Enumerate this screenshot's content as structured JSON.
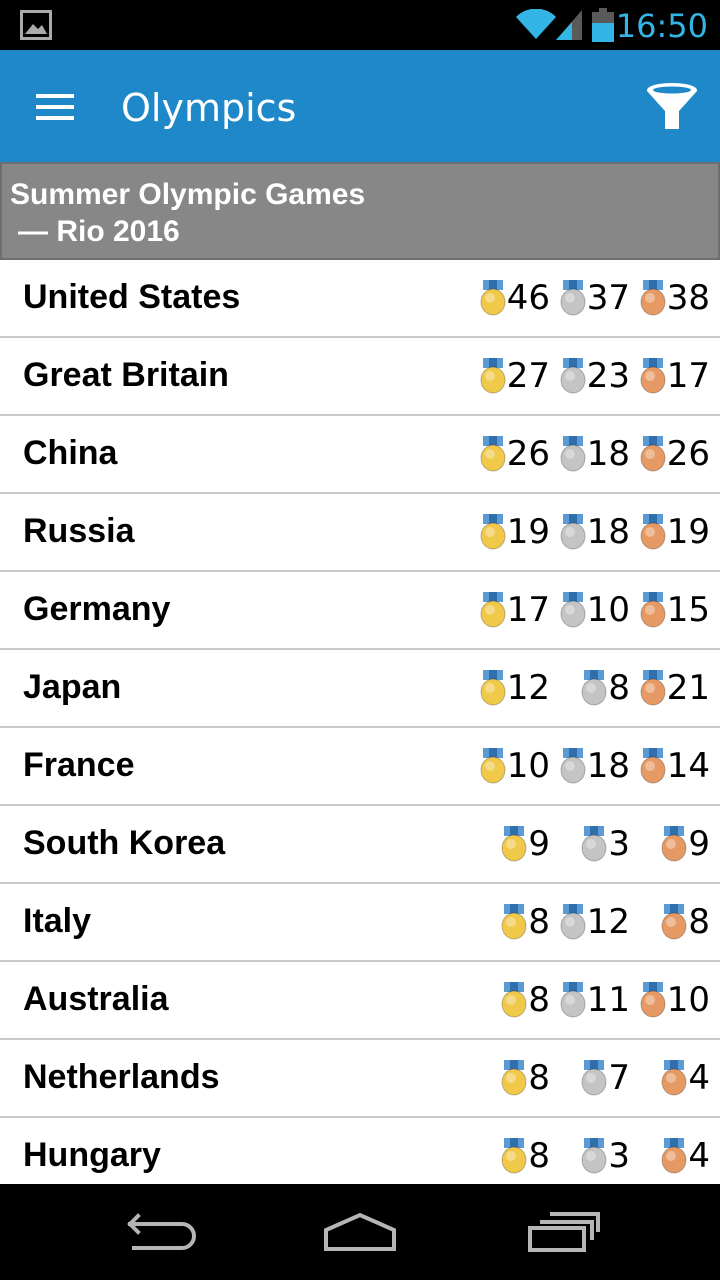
{
  "status_bar": {
    "time": "16:50",
    "icons": [
      "gallery-icon",
      "wifi-icon",
      "signal-icon",
      "battery-icon"
    ],
    "accent_color": "#33b5e5"
  },
  "app_bar": {
    "title": "Olympics",
    "menu_icon": "hamburger-menu-icon",
    "filter_icon": "filter-funnel-icon",
    "background": "#1e88c9"
  },
  "section": {
    "title_line1": "Summer Olympic Games",
    "title_line2": "— Rio 2016"
  },
  "medal_colors": {
    "gold": "#f0c84a",
    "silver": "#c4c4c4",
    "bronze": "#e69a63",
    "ribbon": "#5b9bd5"
  },
  "countries": [
    {
      "name": "United States",
      "gold": "46",
      "silver": "37",
      "bronze": "38"
    },
    {
      "name": "Great Britain",
      "gold": "27",
      "silver": "23",
      "bronze": "17"
    },
    {
      "name": "China",
      "gold": "26",
      "silver": "18",
      "bronze": "26"
    },
    {
      "name": "Russia",
      "gold": "19",
      "silver": "18",
      "bronze": "19"
    },
    {
      "name": "Germany",
      "gold": "17",
      "silver": "10",
      "bronze": "15"
    },
    {
      "name": "Japan",
      "gold": "12",
      "silver": "8",
      "bronze": "21"
    },
    {
      "name": "France",
      "gold": "10",
      "silver": "18",
      "bronze": "14"
    },
    {
      "name": "South Korea",
      "gold": "9",
      "silver": "3",
      "bronze": "9"
    },
    {
      "name": "Italy",
      "gold": "8",
      "silver": "12",
      "bronze": "8"
    },
    {
      "name": "Australia",
      "gold": "8",
      "silver": "11",
      "bronze": "10"
    },
    {
      "name": "Netherlands",
      "gold": "8",
      "silver": "7",
      "bronze": "4"
    },
    {
      "name": "Hungary",
      "gold": "8",
      "silver": "3",
      "bronze": "4"
    }
  ],
  "nav_bar": {
    "icons": [
      "back-icon",
      "home-icon",
      "recents-icon"
    ]
  }
}
